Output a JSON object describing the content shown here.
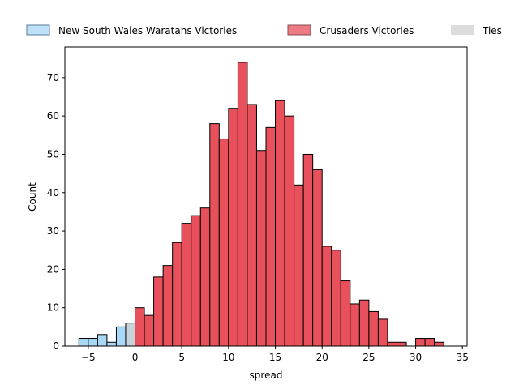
{
  "chart_data": {
    "type": "bar",
    "title": "",
    "xlabel": "spread",
    "ylabel": "Count",
    "xlim": [
      -7.5,
      35.5
    ],
    "ylim": [
      0,
      78
    ],
    "bin_width": 1,
    "x_ticks": [
      -5,
      0,
      5,
      10,
      15,
      20,
      25,
      30,
      35
    ],
    "x_tick_labels": [
      "−5",
      "0",
      "5",
      "10",
      "15",
      "20",
      "25",
      "30",
      "35"
    ],
    "y_ticks": [
      0,
      10,
      20,
      30,
      40,
      50,
      60,
      70
    ],
    "y_tick_labels": [
      "0",
      "10",
      "20",
      "30",
      "40",
      "50",
      "60",
      "70"
    ],
    "legend_position": "top, above plot, horizontal",
    "series": [
      {
        "name": "New South Wales Waratahs Victories",
        "color": "#a8d8f5",
        "edge_color": "#000000",
        "bins": [
          {
            "x": [
              -6,
              -5
            ],
            "count": 2
          },
          {
            "x": [
              -5,
              -4
            ],
            "count": 2
          },
          {
            "x": [
              -4,
              -3
            ],
            "count": 3
          },
          {
            "x": [
              -3,
              -2
            ],
            "count": 1
          },
          {
            "x": [
              -2,
              -1
            ],
            "count": 5
          }
        ]
      },
      {
        "name": "Crusaders Victories",
        "color": "#e8505b",
        "edge_color": "#000000",
        "bins": [
          {
            "x": [
              0,
              1
            ],
            "count": 10
          },
          {
            "x": [
              1,
              2
            ],
            "count": 8
          },
          {
            "x": [
              2,
              3
            ],
            "count": 18
          },
          {
            "x": [
              3,
              4
            ],
            "count": 21
          },
          {
            "x": [
              4,
              5
            ],
            "count": 27
          },
          {
            "x": [
              5,
              6
            ],
            "count": 32
          },
          {
            "x": [
              6,
              7
            ],
            "count": 34
          },
          {
            "x": [
              7,
              8
            ],
            "count": 36
          },
          {
            "x": [
              8,
              9
            ],
            "count": 58
          },
          {
            "x": [
              9,
              10
            ],
            "count": 54
          },
          {
            "x": [
              10,
              11
            ],
            "count": 62
          },
          {
            "x": [
              11,
              12
            ],
            "count": 74
          },
          {
            "x": [
              12,
              13
            ],
            "count": 63
          },
          {
            "x": [
              13,
              14
            ],
            "count": 51
          },
          {
            "x": [
              14,
              15
            ],
            "count": 57
          },
          {
            "x": [
              15,
              16
            ],
            "count": 64
          },
          {
            "x": [
              16,
              17
            ],
            "count": 60
          },
          {
            "x": [
              17,
              18
            ],
            "count": 42
          },
          {
            "x": [
              18,
              19
            ],
            "count": 50
          },
          {
            "x": [
              19,
              20
            ],
            "count": 46
          },
          {
            "x": [
              20,
              21
            ],
            "count": 26
          },
          {
            "x": [
              21,
              22
            ],
            "count": 25
          },
          {
            "x": [
              22,
              23
            ],
            "count": 17
          },
          {
            "x": [
              23,
              24
            ],
            "count": 11
          },
          {
            "x": [
              24,
              25
            ],
            "count": 12
          },
          {
            "x": [
              25,
              26
            ],
            "count": 9
          },
          {
            "x": [
              26,
              27
            ],
            "count": 7
          },
          {
            "x": [
              27,
              28
            ],
            "count": 1
          },
          {
            "x": [
              28,
              29
            ],
            "count": 1
          },
          {
            "x": [
              30,
              31
            ],
            "count": 2
          },
          {
            "x": [
              31,
              32
            ],
            "count": 2
          },
          {
            "x": [
              32,
              33
            ],
            "count": 1
          }
        ]
      },
      {
        "name": "Ties",
        "color": "#c8d4dc",
        "edge_color": "#000000",
        "bins": [
          {
            "x": [
              -1,
              0
            ],
            "count": 6
          }
        ]
      }
    ]
  }
}
